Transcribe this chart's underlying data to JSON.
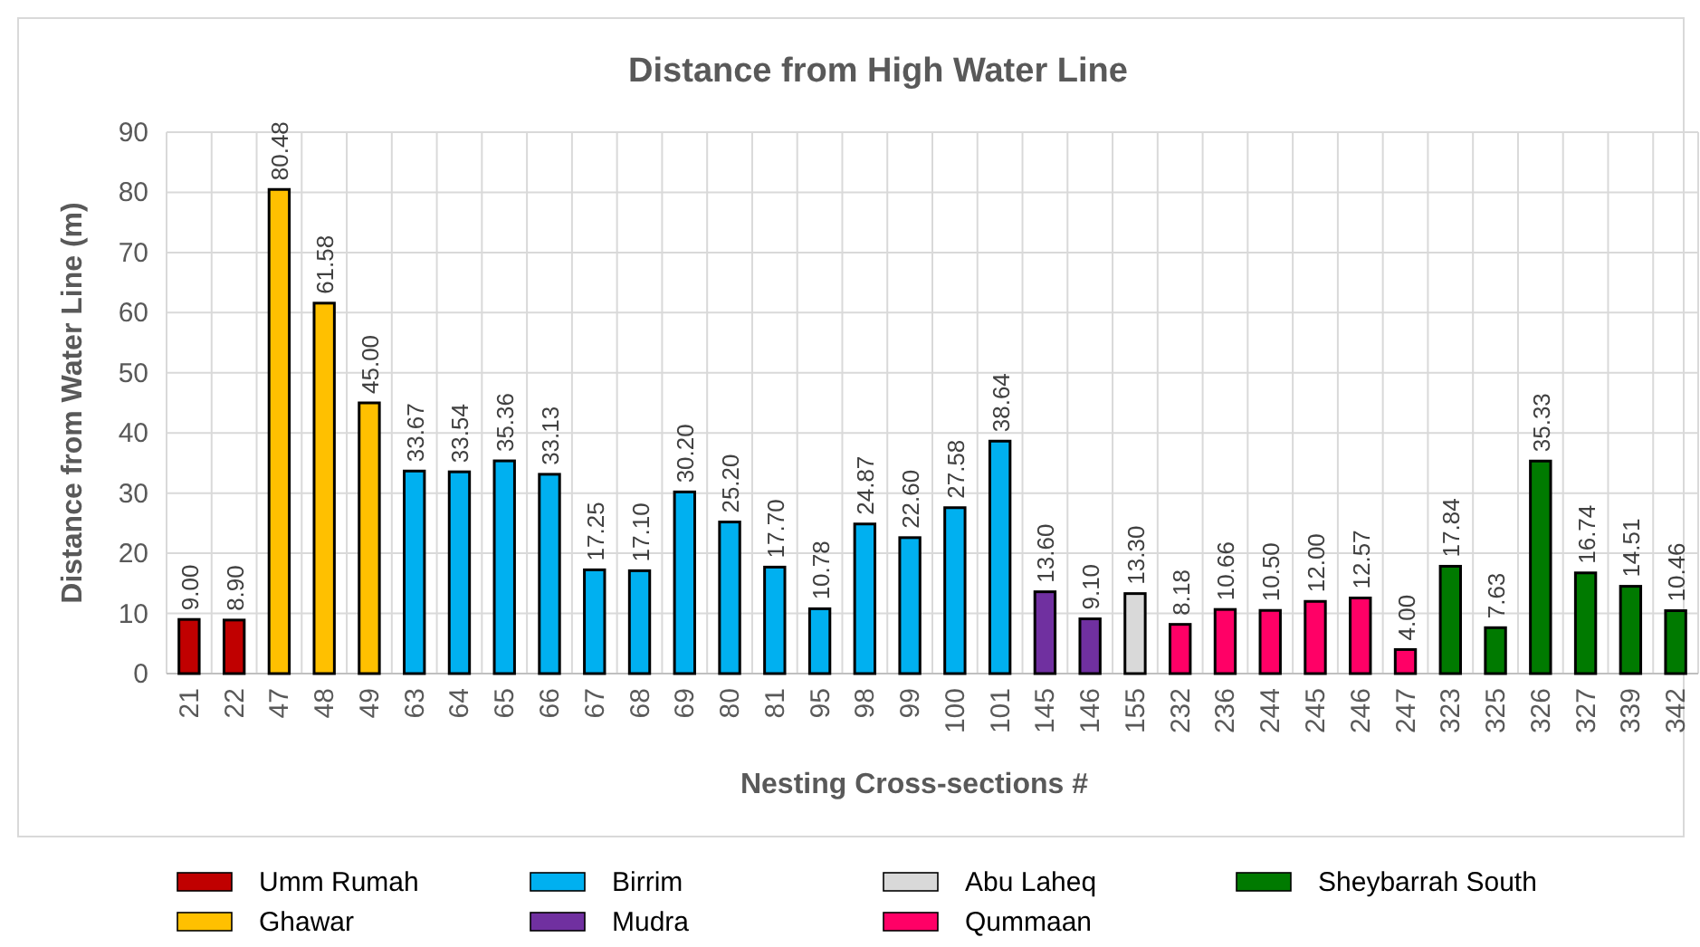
{
  "chart_data": {
    "type": "bar",
    "title": "Distance from High Water Line",
    "xlabel": "Nesting Cross-sections #",
    "ylabel": "Distance from Water Line (m)",
    "categories": [
      "21",
      "22",
      "47",
      "48",
      "49",
      "63",
      "64",
      "65",
      "66",
      "67",
      "68",
      "69",
      "80",
      "81",
      "95",
      "98",
      "99",
      "100",
      "101",
      "145",
      "146",
      "155",
      "232",
      "236",
      "244",
      "245",
      "246",
      "247",
      "323",
      "325",
      "326",
      "327",
      "339",
      "342"
    ],
    "series": [
      {
        "name": "Umm Rumah",
        "color": "#c00000",
        "values": [
          9.0,
          8.9,
          null,
          null,
          null,
          null,
          null,
          null,
          null,
          null,
          null,
          null,
          null,
          null,
          null,
          null,
          null,
          null,
          null,
          null,
          null,
          null,
          null,
          null,
          null,
          null,
          null,
          null,
          null,
          null,
          null,
          null,
          null,
          null
        ],
        "value_labels": [
          "9.00",
          "8.90",
          null,
          null,
          null,
          null,
          null,
          null,
          null,
          null,
          null,
          null,
          null,
          null,
          null,
          null,
          null,
          null,
          null,
          null,
          null,
          null,
          null,
          null,
          null,
          null,
          null,
          null,
          null,
          null,
          null,
          null,
          null,
          null
        ]
      },
      {
        "name": "Ghawar",
        "color": "#ffc000",
        "values": [
          null,
          null,
          80.48,
          61.58,
          45.0,
          null,
          null,
          null,
          null,
          null,
          null,
          null,
          null,
          null,
          null,
          null,
          null,
          null,
          null,
          null,
          null,
          null,
          null,
          null,
          null,
          null,
          null,
          null,
          null,
          null,
          null,
          null,
          null,
          null
        ],
        "value_labels": [
          null,
          null,
          "80.48",
          "61.58",
          "45.00",
          null,
          null,
          null,
          null,
          null,
          null,
          null,
          null,
          null,
          null,
          null,
          null,
          null,
          null,
          null,
          null,
          null,
          null,
          null,
          null,
          null,
          null,
          null,
          null,
          null,
          null,
          null,
          null,
          null
        ]
      },
      {
        "name": "Birrim",
        "color": "#00b0f0",
        "values": [
          null,
          null,
          null,
          null,
          null,
          33.67,
          33.54,
          35.36,
          33.13,
          17.25,
          17.1,
          30.2,
          25.2,
          17.7,
          10.78,
          24.87,
          22.6,
          27.58,
          38.64,
          null,
          null,
          null,
          null,
          null,
          null,
          null,
          null,
          null,
          null,
          null,
          null,
          null,
          null,
          null
        ],
        "value_labels": [
          null,
          null,
          null,
          null,
          null,
          "33.67",
          "33.54",
          "35.36",
          "33.13",
          "17.25",
          "17.10",
          "30.20",
          "25.20",
          "17.70",
          "10.78",
          "24.87",
          "22.60",
          "27.58",
          "38.64",
          null,
          null,
          null,
          null,
          null,
          null,
          null,
          null,
          null,
          null,
          null,
          null,
          null,
          null,
          null
        ]
      },
      {
        "name": "Mudra",
        "color": "#7030a0",
        "values": [
          null,
          null,
          null,
          null,
          null,
          null,
          null,
          null,
          null,
          null,
          null,
          null,
          null,
          null,
          null,
          null,
          null,
          null,
          null,
          13.6,
          9.1,
          null,
          null,
          null,
          null,
          null,
          null,
          null,
          null,
          null,
          null,
          null,
          null,
          null
        ],
        "value_labels": [
          null,
          null,
          null,
          null,
          null,
          null,
          null,
          null,
          null,
          null,
          null,
          null,
          null,
          null,
          null,
          null,
          null,
          null,
          null,
          "13.60",
          "9.10",
          null,
          null,
          null,
          null,
          null,
          null,
          null,
          null,
          null,
          null,
          null,
          null,
          null
        ]
      },
      {
        "name": "Abu Laheq",
        "color": "#d9d9d9",
        "values": [
          null,
          null,
          null,
          null,
          null,
          null,
          null,
          null,
          null,
          null,
          null,
          null,
          null,
          null,
          null,
          null,
          null,
          null,
          null,
          null,
          null,
          13.3,
          null,
          null,
          null,
          null,
          null,
          null,
          null,
          null,
          null,
          null,
          null,
          null
        ],
        "value_labels": [
          null,
          null,
          null,
          null,
          null,
          null,
          null,
          null,
          null,
          null,
          null,
          null,
          null,
          null,
          null,
          null,
          null,
          null,
          null,
          null,
          null,
          "13.30",
          null,
          null,
          null,
          null,
          null,
          null,
          null,
          null,
          null,
          null,
          null,
          null
        ]
      },
      {
        "name": "Qummaan",
        "color": "#ff0066",
        "values": [
          null,
          null,
          null,
          null,
          null,
          null,
          null,
          null,
          null,
          null,
          null,
          null,
          null,
          null,
          null,
          null,
          null,
          null,
          null,
          null,
          null,
          null,
          8.18,
          10.66,
          10.5,
          12.0,
          12.57,
          4.0,
          null,
          null,
          null,
          null,
          null,
          null
        ],
        "value_labels": [
          null,
          null,
          null,
          null,
          null,
          null,
          null,
          null,
          null,
          null,
          null,
          null,
          null,
          null,
          null,
          null,
          null,
          null,
          null,
          null,
          null,
          null,
          "8.18",
          "10.66",
          "10.50",
          "12.00",
          "12.57",
          "4.00",
          null,
          null,
          null,
          null,
          null,
          null
        ]
      },
      {
        "name": "Sheybarrah South",
        "color": "#007a00",
        "values": [
          null,
          null,
          null,
          null,
          null,
          null,
          null,
          null,
          null,
          null,
          null,
          null,
          null,
          null,
          null,
          null,
          null,
          null,
          null,
          null,
          null,
          null,
          null,
          null,
          null,
          null,
          null,
          null,
          17.84,
          7.63,
          35.33,
          16.74,
          14.51,
          10.46
        ],
        "value_labels": [
          null,
          null,
          null,
          null,
          null,
          null,
          null,
          null,
          null,
          null,
          null,
          null,
          null,
          null,
          null,
          null,
          null,
          null,
          null,
          null,
          null,
          null,
          null,
          null,
          null,
          null,
          null,
          null,
          "17.84",
          "7.63",
          "35.33",
          "16.74",
          "14.51",
          "10.46"
        ]
      }
    ],
    "ylim": [
      0,
      90
    ],
    "yticks": [
      0,
      10,
      20,
      30,
      40,
      50,
      60,
      70,
      80,
      90
    ],
    "grid": true,
    "legend": "bottom"
  }
}
